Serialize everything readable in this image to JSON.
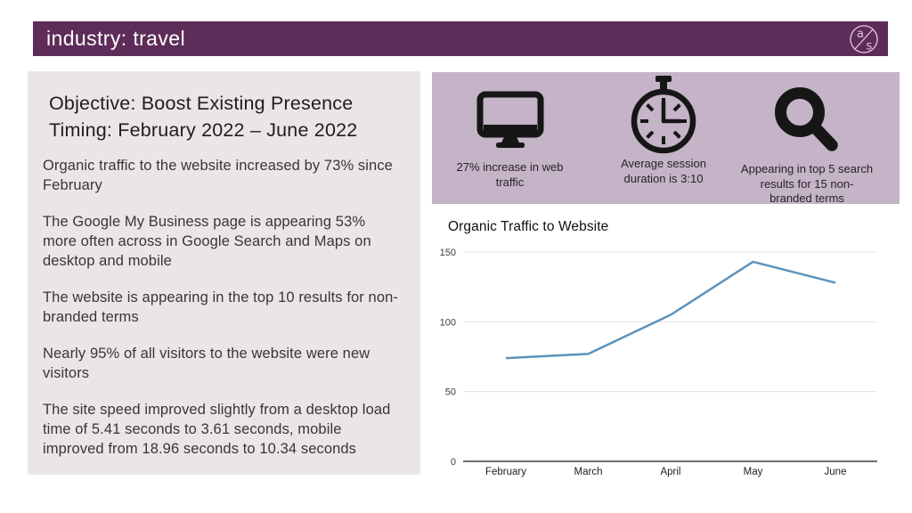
{
  "header": {
    "title": "industry: travel",
    "logo_a": "a",
    "logo_s": "s"
  },
  "left_panel": {
    "heading_line1": "Objective: Boost Existing Presence",
    "heading_line2": "Timing: February 2022 – June 2022",
    "paragraphs": [
      "Organic traffic to the website increased by 73% since February",
      "The Google My Business page is appearing 53% more often across in Google Search and Maps on desktop and mobile",
      "The website is appearing in the top 10 results for non-branded terms",
      "Nearly 95% of all visitors to the website were new visitors",
      "The site speed improved slightly from a desktop load time of 5.41 seconds to 3.61 seconds, mobile improved from 18.96 seconds to 10.34 seconds"
    ]
  },
  "stats_panel": {
    "items": [
      {
        "icon": "desktop-monitor-icon",
        "caption": "27% increase in web traffic"
      },
      {
        "icon": "stopwatch-icon",
        "caption": "Average session duration is 3:10"
      },
      {
        "icon": "magnifying-glass-icon",
        "caption": "Appearing in top 5 search results for 15 non-branded terms"
      }
    ]
  },
  "chart_data": {
    "type": "line",
    "title": "Organic Traffic to Website",
    "categories": [
      "February",
      "March",
      "April",
      "May",
      "June"
    ],
    "values": [
      74,
      77,
      105,
      143,
      128
    ],
    "yticks": [
      0,
      50,
      100,
      150
    ],
    "ylim": [
      0,
      150
    ],
    "xlabel": "",
    "ylabel": "",
    "grid": true,
    "legend": "none",
    "line_color": "#5b93bd"
  },
  "colors": {
    "header_bar": "#5e2c58",
    "summary_panel_bg": "#ebe5ea",
    "stats_panel_bg": "#c5b3c7",
    "icon_color": "#161616",
    "chart_line": "#5b93bd"
  }
}
